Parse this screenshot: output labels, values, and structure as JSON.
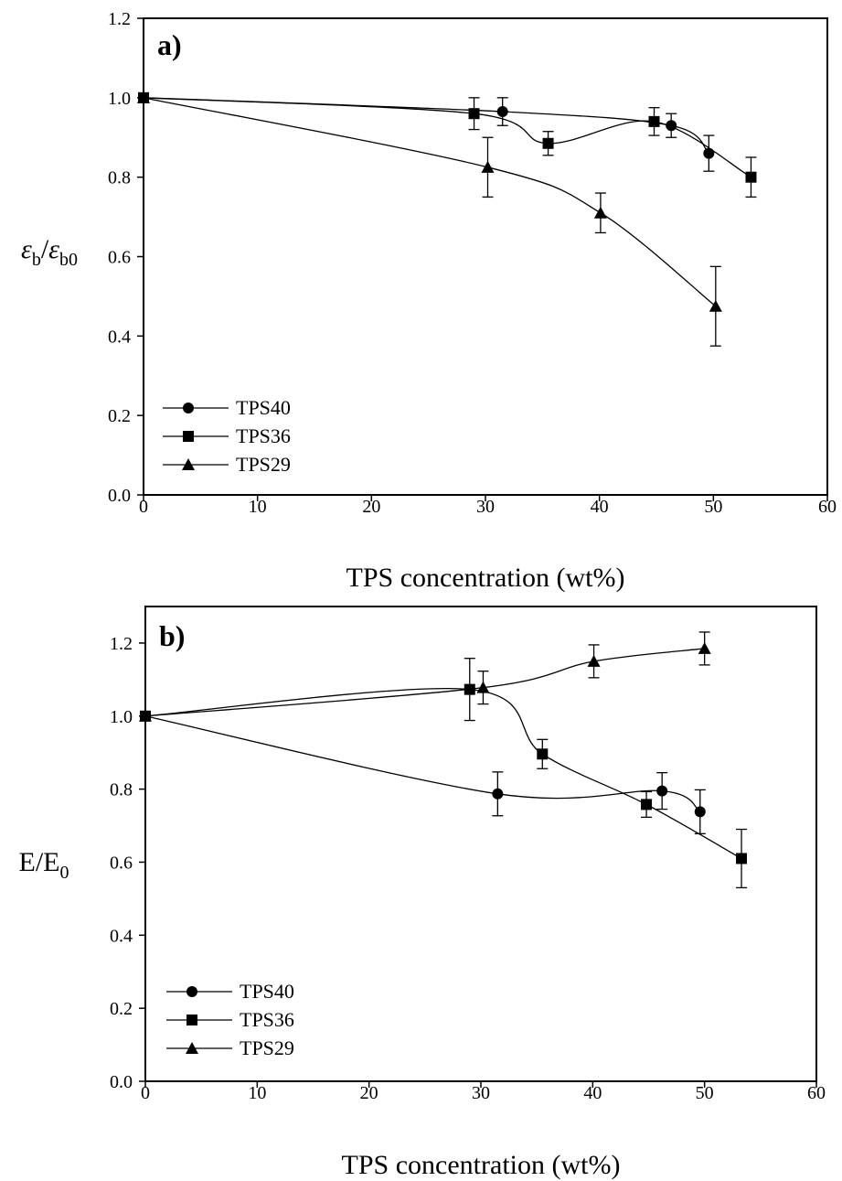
{
  "chart_data": [
    {
      "type": "line",
      "panel_label": "a)",
      "xlabel": "TPS concentration (wt%)",
      "ylabel": {
        "main1": "ε",
        "sub1": "b",
        "slash": "/",
        "main2": "ε",
        "sub2": "b0"
      },
      "xlim": [
        0,
        60
      ],
      "ylim": [
        0,
        1.2
      ],
      "xticks": [
        "0",
        "10",
        "20",
        "30",
        "40",
        "50",
        "60"
      ],
      "yticks": [
        "0.0",
        "0.2",
        "0.4",
        "0.6",
        "0.8",
        "1.0",
        "1.2"
      ],
      "grid": false,
      "legend_position": "bottom-left",
      "series": [
        {
          "name": "TPS40",
          "marker": "circle",
          "x": [
            0,
            31.5,
            46.3,
            49.6
          ],
          "y": [
            1.0,
            0.965,
            0.93,
            0.86
          ],
          "err": [
            0,
            0.035,
            0.03,
            0.045
          ]
        },
        {
          "name": "TPS36",
          "marker": "square",
          "x": [
            0,
            29.0,
            35.5,
            44.8,
            53.3
          ],
          "y": [
            1.0,
            0.96,
            0.885,
            0.94,
            0.8
          ],
          "err": [
            0,
            0.04,
            0.03,
            0.035,
            0.05
          ]
        },
        {
          "name": "TPS29",
          "marker": "triangle",
          "x": [
            0,
            30.2,
            40.1,
            50.2
          ],
          "y": [
            1.0,
            0.825,
            0.71,
            0.475
          ],
          "err": [
            0,
            0.075,
            0.05,
            0.1
          ]
        }
      ]
    },
    {
      "type": "line",
      "panel_label": "b)",
      "xlabel": "TPS concentration (wt%)",
      "ylabel": {
        "main1": "E/E",
        "sub1": "0"
      },
      "xlim": [
        0,
        60
      ],
      "ylim": [
        0,
        1.3
      ],
      "xticks": [
        "0",
        "10",
        "20",
        "30",
        "40",
        "50",
        "60"
      ],
      "yticks": [
        "0.0",
        "0.2",
        "0.4",
        "0.6",
        "0.8",
        "1.0",
        "1.2"
      ],
      "grid": false,
      "legend_position": "bottom-left",
      "series": [
        {
          "name": "TPS40",
          "marker": "circle",
          "x": [
            0,
            31.5,
            46.2,
            49.6
          ],
          "y": [
            1.0,
            0.787,
            0.795,
            0.738
          ],
          "err": [
            0,
            0.06,
            0.05,
            0.06
          ]
        },
        {
          "name": "TPS36",
          "marker": "square",
          "x": [
            0,
            29.0,
            35.5,
            44.8,
            53.3
          ],
          "y": [
            1.0,
            1.073,
            0.896,
            0.758,
            0.61
          ],
          "err": [
            0,
            0.085,
            0.04,
            0.035,
            0.08
          ]
        },
        {
          "name": "TPS29",
          "marker": "triangle",
          "x": [
            0,
            30.2,
            40.1,
            50.0
          ],
          "y": [
            1.0,
            1.078,
            1.15,
            1.185
          ],
          "err": [
            0,
            0.045,
            0.045,
            0.045
          ]
        }
      ]
    }
  ]
}
